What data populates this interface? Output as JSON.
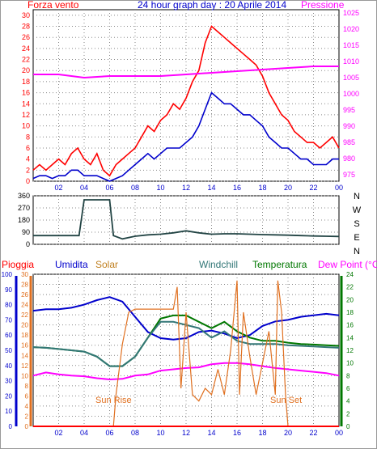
{
  "colors": {
    "red": "#ff0000",
    "blue": "#0000cc",
    "magenta": "#ff00ff",
    "orange": "#e07020",
    "green": "#007700",
    "teal": "#337777",
    "darkgreen_wind": "#224444",
    "grid": "#888888"
  },
  "header": {
    "left_label": "Forza vento",
    "title": "24 hour graph day : 20 Aprile 2014",
    "right_label": "Pressione"
  },
  "bottom_header": {
    "rain": "Pioggia",
    "humidity": "Umidita",
    "solar": "Solar",
    "windchill": "Windchill",
    "temperature": "Temperatura",
    "dewpoint": "Dew Point (°C)"
  },
  "annotations": {
    "sunrise": "Sun Rise",
    "sunset": "Sun Set"
  },
  "chart_data": [
    {
      "type": "line",
      "yleft_ticks": [
        "0",
        "2",
        "4",
        "6",
        "8",
        "10",
        "12",
        "14",
        "16",
        "18",
        "20",
        "22",
        "24",
        "26",
        "28",
        "30"
      ],
      "yright_ticks": [
        "975",
        "980",
        "985",
        "990",
        "995",
        "1000",
        "1005",
        "1010",
        "1015",
        "1020",
        "1025"
      ],
      "x_ticks": [
        "02",
        "04",
        "06",
        "08",
        "10",
        "12",
        "14",
        "16",
        "18",
        "20",
        "22",
        "00"
      ],
      "xlim": [
        0,
        24
      ],
      "ylim_left": [
        0,
        31
      ],
      "ylim_right": [
        973,
        1026
      ],
      "series": [
        {
          "color": "red",
          "axis": "left",
          "x": [
            0,
            0.5,
            1,
            1.5,
            2,
            2.5,
            3,
            3.5,
            4,
            4.5,
            5,
            5.5,
            6,
            6.5,
            7,
            7.5,
            8,
            8.5,
            9,
            9.5,
            10,
            10.5,
            11,
            11.5,
            12,
            12.5,
            13,
            13.5,
            14,
            14.5,
            15,
            15.5,
            16,
            16.5,
            17,
            17.5,
            18,
            18.5,
            19,
            19.5,
            20,
            20.5,
            21,
            21.5,
            22,
            22.5,
            23,
            23.5,
            24
          ],
          "y": [
            2,
            3,
            2,
            3,
            4,
            3,
            5,
            6,
            4,
            3,
            5,
            2,
            1,
            3,
            4,
            5,
            6,
            8,
            10,
            9,
            11,
            12,
            14,
            13,
            15,
            18,
            20,
            25,
            28,
            27,
            26,
            25,
            24,
            23,
            22,
            21,
            19,
            16,
            14,
            12,
            11,
            9,
            8,
            7,
            7,
            6,
            7,
            8,
            6
          ]
        },
        {
          "color": "blue",
          "axis": "left",
          "x": [
            0,
            0.5,
            1,
            1.5,
            2,
            2.5,
            3,
            3.5,
            4,
            4.5,
            5,
            5.5,
            6,
            6.5,
            7,
            7.5,
            8,
            8.5,
            9,
            9.5,
            10,
            10.5,
            11,
            11.5,
            12,
            12.5,
            13,
            13.5,
            14,
            14.5,
            15,
            15.5,
            16,
            16.5,
            17,
            17.5,
            18,
            18.5,
            19,
            19.5,
            20,
            20.5,
            21,
            21.5,
            22,
            22.5,
            23,
            23.5,
            24
          ],
          "y": [
            0.5,
            1,
            1,
            0.5,
            1,
            1,
            2,
            2,
            1,
            1,
            1,
            0.5,
            0,
            0.5,
            1,
            2,
            3,
            4,
            5,
            4,
            5,
            6,
            6,
            6,
            7,
            8,
            10,
            13,
            16,
            15,
            14,
            14,
            13,
            12,
            12,
            11,
            10,
            8,
            7,
            6,
            6,
            5,
            4,
            4,
            3,
            3,
            3,
            4,
            4
          ]
        },
        {
          "color": "magenta",
          "axis": "right",
          "x": [
            0,
            2,
            4,
            6,
            8,
            10,
            12,
            14,
            16,
            18,
            20,
            22,
            24
          ],
          "y": [
            1006,
            1006,
            1005,
            1005.5,
            1005.5,
            1005.5,
            1006,
            1006.5,
            1007,
            1007.5,
            1008,
            1008.5,
            1008.5
          ]
        }
      ]
    },
    {
      "type": "line",
      "ylabel_right": [
        "N",
        "W",
        "S",
        "E",
        "N"
      ],
      "y_ticks": [
        "0",
        "90",
        "180",
        "270",
        "360"
      ],
      "ylim": [
        0,
        360
      ],
      "xlim": [
        0,
        24
      ],
      "series": [
        {
          "color": "darkgreen_wind",
          "x": [
            0,
            1,
            2,
            3,
            3.6,
            4,
            5,
            6,
            6.3,
            7,
            8,
            9,
            10,
            11,
            12,
            13,
            14,
            15,
            16,
            17,
            18,
            19,
            20,
            21,
            22,
            23,
            24
          ],
          "y": [
            65,
            65,
            65,
            65,
            65,
            330,
            330,
            330,
            65,
            40,
            60,
            70,
            75,
            85,
            100,
            85,
            75,
            78,
            78,
            75,
            72,
            70,
            68,
            65,
            62,
            60,
            58
          ]
        }
      ]
    },
    {
      "type": "line",
      "y1_ticks": [
        "0",
        "10",
        "20",
        "30",
        "40",
        "50",
        "60",
        "70",
        "80",
        "90",
        "100"
      ],
      "y2_ticks": [
        "0",
        "2",
        "4",
        "6",
        "8",
        "10",
        "12",
        "14",
        "16",
        "18",
        "20",
        "22",
        "24",
        "26",
        "28",
        "30"
      ],
      "y3_ticks": [
        "0",
        "2",
        "4",
        "6",
        "8",
        "10",
        "12",
        "14",
        "16",
        "18",
        "20",
        "22",
        "24"
      ],
      "x_ticks": [
        "02",
        "04",
        "06",
        "08",
        "10",
        "12",
        "14",
        "16",
        "18",
        "20",
        "22",
        "00"
      ],
      "xlim": [
        0,
        24
      ],
      "ylim_humidity": [
        0,
        100
      ],
      "ylim_temperature": [
        0,
        24
      ],
      "series": [
        {
          "name": "Umidita",
          "color": "blue",
          "axis": "humidity",
          "x": [
            0,
            1,
            2,
            3,
            4,
            5,
            6,
            7,
            8,
            9,
            10,
            11,
            12,
            13,
            14,
            15,
            16,
            17,
            18,
            19,
            20,
            21,
            22,
            23,
            24
          ],
          "y": [
            76,
            77,
            77,
            78,
            80,
            83,
            85,
            82,
            72,
            62,
            58,
            57,
            58,
            62,
            63,
            61,
            58,
            60,
            66,
            69,
            70,
            72,
            73,
            74,
            73
          ]
        },
        {
          "name": "Temperatura",
          "color": "green",
          "axis": "temperature",
          "x": [
            0,
            1,
            2,
            3,
            4,
            5,
            6,
            7,
            8,
            9,
            10,
            11,
            12,
            13,
            14,
            15,
            16,
            17,
            18,
            19,
            20,
            21,
            22,
            23,
            24
          ],
          "y": [
            12.5,
            12.4,
            12.2,
            12,
            11.8,
            11,
            9.5,
            9.5,
            11,
            14,
            17,
            17.5,
            17.5,
            16.5,
            15.5,
            16.5,
            15,
            14,
            13.5,
            13.5,
            13.2,
            13,
            12.9,
            12.8,
            12.7
          ]
        },
        {
          "name": "Windchill",
          "color": "teal",
          "axis": "temperature",
          "x": [
            0,
            1,
            2,
            3,
            4,
            5,
            6,
            7,
            8,
            9,
            10,
            11,
            12,
            13,
            14,
            15,
            16,
            17,
            18,
            19,
            20,
            21,
            22,
            23,
            24
          ],
          "y": [
            12.5,
            12.4,
            12.2,
            12,
            11.8,
            11,
            9.5,
            9.5,
            11,
            14,
            16.5,
            16.5,
            16,
            15.5,
            14,
            15,
            13.5,
            13,
            13,
            13,
            12.8,
            12.7,
            12.6,
            12.5,
            12.4
          ]
        },
        {
          "name": "Dew Point",
          "color": "magenta",
          "axis": "temperature",
          "x": [
            0,
            1,
            2,
            3,
            4,
            5,
            6,
            7,
            8,
            9,
            10,
            11,
            12,
            13,
            14,
            15,
            16,
            17,
            18,
            19,
            20,
            21,
            22,
            23,
            24
          ],
          "y": [
            8,
            8.5,
            8.2,
            8,
            7.9,
            7.6,
            7.4,
            7.5,
            8,
            8.2,
            8.8,
            9,
            9.2,
            9.3,
            9.8,
            10,
            10,
            9.8,
            9.5,
            9.2,
            9,
            8.8,
            8.6,
            8.4,
            8
          ]
        },
        {
          "name": "Solar",
          "color": "orange",
          "axis": "temperature",
          "x": [
            0,
            6.3,
            6.5,
            7,
            7.5,
            8,
            9,
            10,
            11,
            11.3,
            11.6,
            12,
            12.5,
            13,
            13.5,
            14,
            14.5,
            15,
            15.5,
            16,
            16.2,
            16.5,
            17,
            17.5,
            18,
            18.5,
            19,
            19.2,
            19.5,
            19.8,
            20,
            24
          ],
          "y": [
            0,
            0,
            5,
            13,
            18,
            18.5,
            18.5,
            18.5,
            18.5,
            22,
            6,
            18,
            5,
            4,
            6,
            5,
            9,
            5,
            12,
            23,
            5,
            18,
            11,
            5,
            10,
            15,
            5,
            23,
            18,
            5,
            0,
            0
          ]
        },
        {
          "name": "Pioggia",
          "color": "red",
          "axis": "humidity",
          "x": [
            0,
            24
          ],
          "y": [
            0,
            0
          ]
        }
      ]
    }
  ]
}
